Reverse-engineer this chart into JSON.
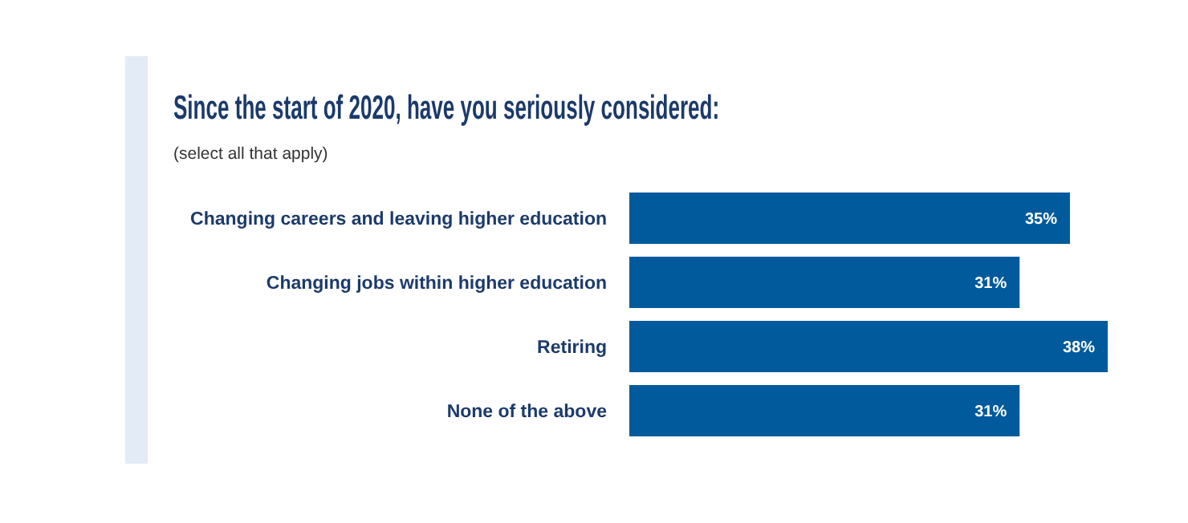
{
  "chart_data": {
    "type": "bar",
    "orientation": "horizontal",
    "title": "Since the start of 2020, have you seriously considered:",
    "subtitle": "(select all that apply)",
    "categories": [
      "Changing careers and leaving higher education",
      "Changing jobs within higher education",
      "Retiring",
      "None of the above"
    ],
    "series": [
      {
        "color": "#005a9c",
        "values": [
          35,
          31,
          38,
          31
        ],
        "value_labels": [
          "35%",
          "31%",
          "38%",
          "31%"
        ]
      }
    ],
    "tick_labels": "y"
  }
}
